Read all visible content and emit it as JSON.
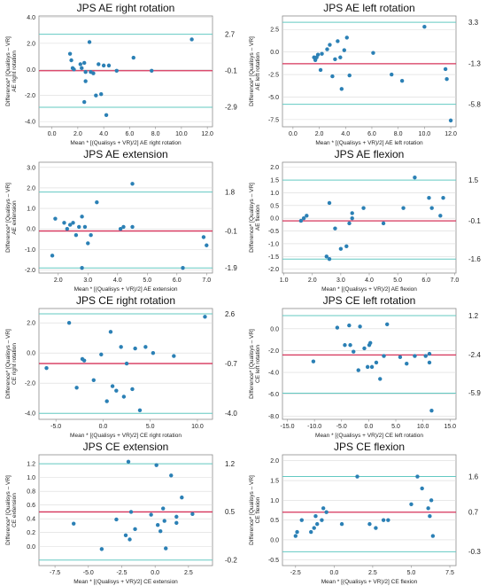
{
  "palette": {
    "limit_line": "#63c9c2",
    "mean_line": "#d6335a",
    "point": "#2b80b5",
    "grid": "#d9d9d9",
    "frame": "#8c8c8c"
  },
  "chart_data": [
    {
      "type": "scatter",
      "title": "JPS AE right rotation",
      "ylabel": [
        "Difference* [Qualisys – VR]",
        "AE right rotation"
      ],
      "xlabel": "Mean * [(Qualisys + VR)/2] AE right rotation",
      "xlim": [
        -1.0,
        12.4
      ],
      "ylim": [
        -4.4,
        4.1
      ],
      "xticks": [
        0.0,
        2.0,
        4.0,
        6.0,
        8.0,
        10.0,
        12.0
      ],
      "yticks": [
        -4.0,
        -2.0,
        0.0,
        2.0,
        4.0
      ],
      "reference_lines": [
        {
          "value": 2.7,
          "label": "2.7",
          "kind": "limit"
        },
        {
          "value": -0.1,
          "label": "-0.1",
          "kind": "mean"
        },
        {
          "value": -2.9,
          "label": "-2.9",
          "kind": "limit"
        }
      ],
      "points": [
        [
          1.4,
          1.2
        ],
        [
          1.5,
          0.7
        ],
        [
          1.6,
          0.1
        ],
        [
          1.7,
          0.0
        ],
        [
          2.2,
          0.4
        ],
        [
          2.3,
          0.1
        ],
        [
          2.5,
          0.5
        ],
        [
          2.6,
          -0.2
        ],
        [
          2.5,
          -2.5
        ],
        [
          2.6,
          -0.9
        ],
        [
          2.9,
          2.1
        ],
        [
          3.0,
          -0.2
        ],
        [
          3.2,
          -0.3
        ],
        [
          3.4,
          -2.0
        ],
        [
          3.6,
          0.4
        ],
        [
          3.8,
          -1.9
        ],
        [
          4.0,
          0.3
        ],
        [
          4.2,
          -3.5
        ],
        [
          4.4,
          0.3
        ],
        [
          5.0,
          -0.1
        ],
        [
          6.3,
          0.9
        ],
        [
          7.7,
          -0.1
        ],
        [
          10.8,
          2.3
        ]
      ]
    },
    {
      "type": "scatter",
      "title": "JPS AE left rotation",
      "ylabel": [
        "Difference* [Qualisys – VR]",
        "AE left rotation"
      ],
      "xlabel": "Mean * [(Qualisys + VR)/2] AE left rotation",
      "xlim": [
        -0.8,
        12.4
      ],
      "ylim": [
        -8.3,
        4.0
      ],
      "xticks": [
        0.0,
        2.0,
        4.0,
        6.0,
        8.0,
        10.0,
        12.0
      ],
      "yticks": [
        -7.5,
        -5.0,
        -2.5,
        0.0,
        2.5
      ],
      "reference_lines": [
        {
          "value": 3.3,
          "label": "3.3",
          "kind": "limit"
        },
        {
          "value": -1.3,
          "label": "-1.3",
          "kind": "mean"
        },
        {
          "value": -5.8,
          "label": "-5.8",
          "kind": "limit"
        }
      ],
      "points": [
        [
          1.6,
          -0.6
        ],
        [
          1.7,
          -0.9
        ],
        [
          1.8,
          -0.6
        ],
        [
          1.9,
          -0.3
        ],
        [
          2.1,
          -2.0
        ],
        [
          2.2,
          -0.2
        ],
        [
          2.6,
          0.3
        ],
        [
          2.8,
          0.8
        ],
        [
          3.0,
          -2.7
        ],
        [
          3.2,
          -0.8
        ],
        [
          3.4,
          1.2
        ],
        [
          3.6,
          -0.6
        ],
        [
          3.7,
          -4.1
        ],
        [
          3.9,
          0.2
        ],
        [
          4.1,
          1.6
        ],
        [
          4.3,
          -2.6
        ],
        [
          6.1,
          -0.1
        ],
        [
          7.5,
          -2.5
        ],
        [
          8.3,
          -3.2
        ],
        [
          10.0,
          2.8
        ],
        [
          11.6,
          -1.9
        ],
        [
          11.7,
          -3.0
        ],
        [
          12.0,
          -7.6
        ]
      ]
    },
    {
      "type": "scatter",
      "title": "JPS AE extension",
      "ylabel": [
        "Difference* [Qualisys – VR]",
        "AE extension"
      ],
      "xlabel": "Mean * [(Qualisys + VR)/2] AE extension",
      "xlim": [
        1.35,
        7.2
      ],
      "ylim": [
        -2.15,
        3.25
      ],
      "xticks": [
        2.0,
        3.0,
        4.0,
        5.0,
        6.0,
        7.0
      ],
      "yticks": [
        -2.0,
        -1.0,
        0.0,
        1.0,
        2.0,
        3.0
      ],
      "reference_lines": [
        {
          "value": 1.8,
          "label": "1.8",
          "kind": "limit"
        },
        {
          "value": -0.1,
          "label": "-0.1",
          "kind": "mean"
        },
        {
          "value": -1.9,
          "label": "-1.9",
          "kind": "limit"
        }
      ],
      "points": [
        [
          1.8,
          -1.3
        ],
        [
          1.9,
          0.5
        ],
        [
          2.2,
          0.3
        ],
        [
          2.3,
          0.0
        ],
        [
          2.4,
          0.2
        ],
        [
          2.5,
          0.3
        ],
        [
          2.6,
          -0.3
        ],
        [
          2.7,
          0.1
        ],
        [
          2.8,
          0.6
        ],
        [
          2.9,
          0.1
        ],
        [
          3.0,
          -0.7
        ],
        [
          3.1,
          -0.3
        ],
        [
          3.3,
          1.3
        ],
        [
          2.8,
          -1.9
        ],
        [
          4.1,
          0.0
        ],
        [
          4.2,
          0.1
        ],
        [
          4.5,
          2.2
        ],
        [
          4.5,
          0.1
        ],
        [
          6.2,
          -1.9
        ],
        [
          6.9,
          -0.4
        ],
        [
          7.0,
          -0.8
        ]
      ]
    },
    {
      "type": "scatter",
      "title": "JPS AE flexion",
      "ylabel": [
        "Difference* [Qualisys – VR]",
        "AE flexion"
      ],
      "xlabel": "Mean * [(Qualisys + VR)/2] AE flexion",
      "xlim": [
        0.95,
        7.05
      ],
      "ylim": [
        -2.15,
        2.2
      ],
      "xticks": [
        1.0,
        2.0,
        3.0,
        4.0,
        5.0,
        6.0,
        7.0
      ],
      "yticks": [
        -2.0,
        -1.5,
        -1.0,
        -0.5,
        0.0,
        0.5,
        1.0,
        1.5,
        2.0
      ],
      "reference_lines": [
        {
          "value": 1.5,
          "label": "1.5",
          "kind": "limit"
        },
        {
          "value": -0.1,
          "label": "-0.1",
          "kind": "mean"
        },
        {
          "value": -1.6,
          "label": "-1.6",
          "kind": "limit"
        }
      ],
      "points": [
        [
          1.6,
          -0.1
        ],
        [
          1.7,
          0.0
        ],
        [
          1.8,
          0.1
        ],
        [
          2.5,
          -1.5
        ],
        [
          2.6,
          -1.6
        ],
        [
          2.6,
          0.6
        ],
        [
          2.8,
          -0.4
        ],
        [
          3.0,
          -1.2
        ],
        [
          3.2,
          -1.1
        ],
        [
          3.3,
          -0.2
        ],
        [
          3.4,
          0.2
        ],
        [
          3.4,
          0.0
        ],
        [
          3.8,
          0.4
        ],
        [
          4.5,
          -0.2
        ],
        [
          5.2,
          0.4
        ],
        [
          5.6,
          1.6
        ],
        [
          6.1,
          0.8
        ],
        [
          6.2,
          0.4
        ],
        [
          6.5,
          0.1
        ],
        [
          6.6,
          0.8
        ]
      ]
    },
    {
      "type": "scatter",
      "title": "JPS CE right rotation",
      "ylabel": [
        "Difference* [Qualisys – VR]",
        "CE right rotation"
      ],
      "xlabel": "Mean * [(Qualisys + VR)/2] CE right rotation",
      "xlim": [
        -6.8,
        11.6
      ],
      "ylim": [
        -4.4,
        2.95
      ],
      "xticks": [
        -5.0,
        0.0,
        5.0,
        10.0
      ],
      "yticks": [
        -4.0,
        -2.0,
        0.0,
        2.0
      ],
      "reference_lines": [
        {
          "value": 2.6,
          "label": "2.6",
          "kind": "limit"
        },
        {
          "value": -0.7,
          "label": "-0.7",
          "kind": "mean"
        },
        {
          "value": -4.0,
          "label": "-4.0",
          "kind": "limit"
        }
      ],
      "points": [
        [
          -6.0,
          -1.0
        ],
        [
          -3.6,
          2.0
        ],
        [
          -2.8,
          -2.3
        ],
        [
          -2.2,
          -0.4
        ],
        [
          -2.0,
          -0.5
        ],
        [
          -1.0,
          -1.8
        ],
        [
          -0.2,
          -0.1
        ],
        [
          0.4,
          -3.2
        ],
        [
          0.8,
          1.4
        ],
        [
          1.0,
          -2.2
        ],
        [
          1.4,
          -2.5
        ],
        [
          1.9,
          0.4
        ],
        [
          2.2,
          -2.9
        ],
        [
          2.5,
          -0.7
        ],
        [
          3.1,
          -2.4
        ],
        [
          3.4,
          0.3
        ],
        [
          3.9,
          -3.8
        ],
        [
          4.5,
          0.4
        ],
        [
          5.3,
          0.0
        ],
        [
          7.5,
          -0.2
        ],
        [
          10.8,
          2.4
        ]
      ]
    },
    {
      "type": "scatter",
      "title": "JPS CE left rotation",
      "ylabel": [
        "Difference* [Qualisys – VR]",
        "CE left rotation"
      ],
      "xlabel": "Mean * [(Qualisys + VR)/2] CE left rotation",
      "xlim": [
        -15.9,
        16.1
      ],
      "ylim": [
        -8.3,
        1.85
      ],
      "xticks": [
        -15.0,
        -10.0,
        -5.0,
        0.0,
        5.0,
        10.0,
        15.0
      ],
      "yticks": [
        -8.0,
        -6.0,
        -4.0,
        -2.0,
        0.0
      ],
      "reference_lines": [
        {
          "value": 1.2,
          "label": "1.2",
          "kind": "limit"
        },
        {
          "value": -2.4,
          "label": "-2.4",
          "kind": "mean"
        },
        {
          "value": -5.9,
          "label": "-5.9",
          "kind": "limit"
        }
      ],
      "points": [
        [
          -10.2,
          -3.0
        ],
        [
          -5.8,
          0.1
        ],
        [
          -4.4,
          -1.5
        ],
        [
          -3.6,
          0.3
        ],
        [
          -3.4,
          -1.5
        ],
        [
          -2.8,
          -2.1
        ],
        [
          -1.9,
          -3.8
        ],
        [
          -1.6,
          0.2
        ],
        [
          -0.8,
          -1.8
        ],
        [
          -0.2,
          -3.5
        ],
        [
          0.1,
          -1.5
        ],
        [
          0.3,
          -1.3
        ],
        [
          0.6,
          -3.5
        ],
        [
          1.4,
          -3.1
        ],
        [
          2.1,
          -4.6
        ],
        [
          2.8,
          -2.5
        ],
        [
          3.4,
          0.4
        ],
        [
          5.8,
          -2.6
        ],
        [
          7.0,
          -3.2
        ],
        [
          8.5,
          -2.5
        ],
        [
          10.5,
          -2.5
        ],
        [
          11.2,
          -2.3
        ],
        [
          11.2,
          -3.1
        ],
        [
          11.6,
          -7.5
        ]
      ]
    },
    {
      "type": "scatter",
      "title": "JPS CE extension",
      "ylabel": [
        "Difference* [Qualisys – VR]",
        "CE extension"
      ],
      "xlabel": "Mean * [(Qualisys + VR)/2] CE extension",
      "xlim": [
        -8.7,
        4.3
      ],
      "ylim": [
        -0.28,
        1.33
      ],
      "xticks": [
        -7.5,
        -5.0,
        -2.5,
        0.0,
        2.5
      ],
      "yticks": [
        0.0,
        0.2,
        0.4,
        0.6,
        0.8,
        1.0,
        1.2
      ],
      "reference_lines": [
        {
          "value": 1.2,
          "label": "1.2",
          "kind": "limit"
        },
        {
          "value": 0.5,
          "label": "0.5",
          "kind": "mean"
        },
        {
          "value": -0.2,
          "label": "-0.2",
          "kind": "limit"
        }
      ],
      "points": [
        [
          -6.1,
          0.33
        ],
        [
          -4.0,
          -0.04
        ],
        [
          -2.9,
          0.39
        ],
        [
          -2.2,
          0.16
        ],
        [
          -2.0,
          1.23
        ],
        [
          -1.9,
          0.1
        ],
        [
          -1.8,
          0.5
        ],
        [
          -1.5,
          0.25
        ],
        [
          -0.3,
          0.46
        ],
        [
          0.1,
          1.18
        ],
        [
          0.2,
          0.31
        ],
        [
          0.4,
          0.22
        ],
        [
          0.6,
          0.55
        ],
        [
          0.7,
          0.37
        ],
        [
          0.8,
          -0.03
        ],
        [
          1.2,
          1.03
        ],
        [
          1.6,
          0.43
        ],
        [
          1.6,
          0.34
        ],
        [
          2.0,
          0.71
        ],
        [
          2.8,
          0.47
        ]
      ]
    },
    {
      "type": "scatter",
      "title": "JPS CE flexion",
      "ylabel": [
        "Difference* [Qualisys – VR]",
        "CE flexion"
      ],
      "xlabel": "Mean * [(Qualisys + VR)/2] CE flexion",
      "xlim": [
        -3.35,
        7.9
      ],
      "ylim": [
        -0.65,
        2.15
      ],
      "xticks": [
        -2.5,
        0.0,
        2.5,
        5.0,
        7.5
      ],
      "yticks": [
        -0.5,
        0.0,
        0.5,
        1.0,
        1.5,
        2.0
      ],
      "reference_lines": [
        {
          "value": 1.6,
          "label": "1.6",
          "kind": "limit"
        },
        {
          "value": 0.7,
          "label": "0.7",
          "kind": "mean"
        },
        {
          "value": -0.3,
          "label": "-0.3",
          "kind": "limit"
        }
      ],
      "points": [
        [
          -2.5,
          0.1
        ],
        [
          -2.4,
          0.2
        ],
        [
          -2.1,
          0.5
        ],
        [
          -1.5,
          0.2
        ],
        [
          -1.3,
          0.3
        ],
        [
          -1.2,
          0.6
        ],
        [
          -1.1,
          0.4
        ],
        [
          -0.8,
          0.5
        ],
        [
          -0.7,
          0.8
        ],
        [
          -0.5,
          0.7
        ],
        [
          0.5,
          0.4
        ],
        [
          1.5,
          1.6
        ],
        [
          2.3,
          0.4
        ],
        [
          2.7,
          0.3
        ],
        [
          3.2,
          0.5
        ],
        [
          3.5,
          0.5
        ],
        [
          5.0,
          0.9
        ],
        [
          5.4,
          1.6
        ],
        [
          5.7,
          1.3
        ],
        [
          6.1,
          0.8
        ],
        [
          6.2,
          0.6
        ],
        [
          6.3,
          1.0
        ],
        [
          6.4,
          0.1
        ]
      ]
    }
  ]
}
